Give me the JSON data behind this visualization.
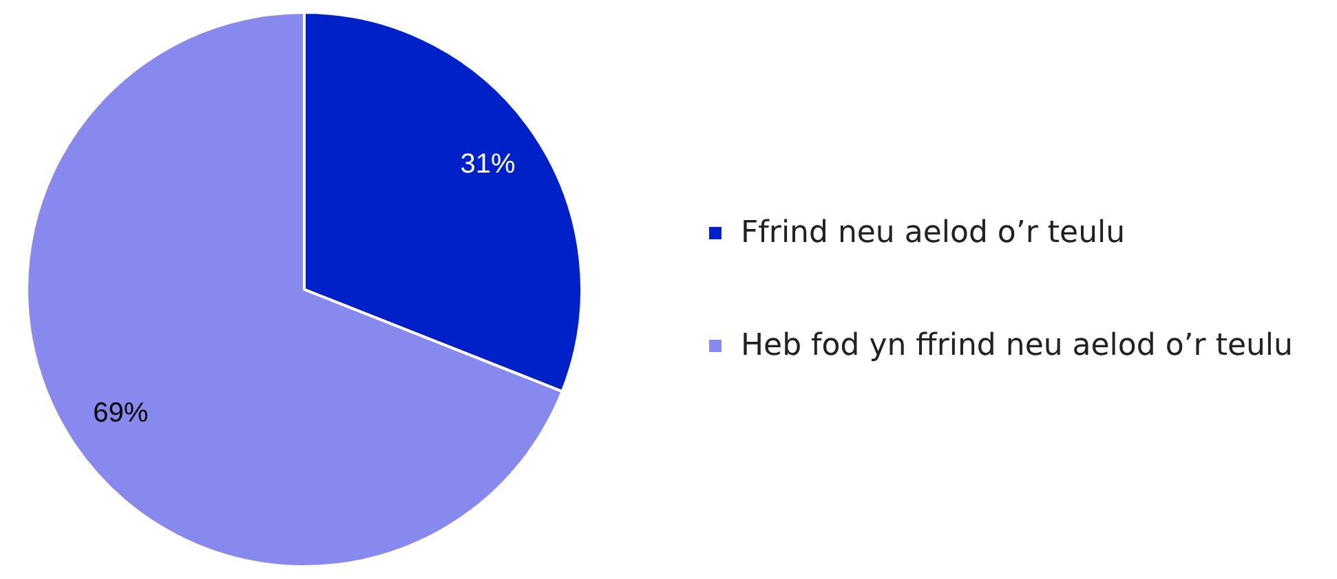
{
  "chart_data": {
    "type": "pie",
    "categories": [
      "Ffrind neu aelod o’r teulu",
      "Heb fod yn ffrind neu aelod o’r teulu"
    ],
    "values": [
      31,
      69
    ],
    "colors": [
      "#0021c8",
      "#8889ee"
    ],
    "value_labels": [
      "31%",
      "69%"
    ],
    "legend": "right"
  }
}
